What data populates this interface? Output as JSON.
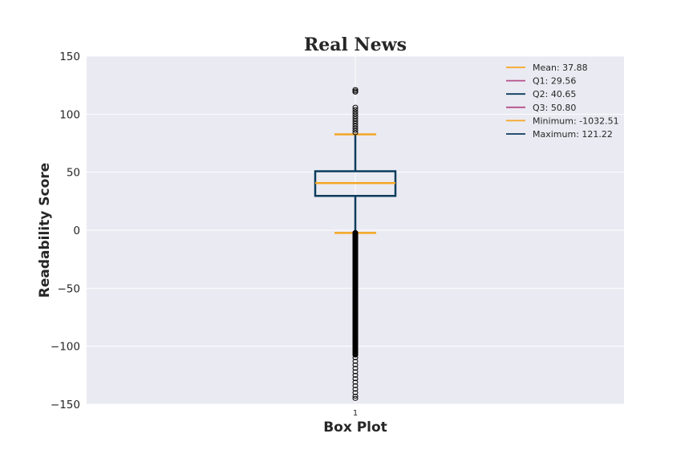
{
  "chart_data": {
    "type": "box",
    "title": "Real News",
    "xlabel": "Box Plot",
    "ylabel": "Readability Score",
    "categories": [
      "1"
    ],
    "ylim": [
      -150,
      150
    ],
    "yticks": [
      150,
      100,
      50,
      0,
      -50,
      -100,
      -150
    ],
    "yticks_labels": [
      "150",
      "100",
      "50",
      "0",
      "−50",
      "−100",
      "−150"
    ],
    "grid": true,
    "legend_position": "top-right",
    "box": {
      "q1": 29.56,
      "median": 40.65,
      "q3": 50.8,
      "whisker_low": -2.3,
      "whisker_high": 82.6,
      "outliers_high": [
        84,
        86,
        88,
        90,
        92,
        94,
        96,
        98,
        100,
        102,
        104,
        106,
        119,
        120,
        121.22
      ],
      "outliers_low_dense": [
        -2,
        -108
      ],
      "outliers_low_sparse": [
        -110,
        -113,
        -116,
        -119,
        -122,
        -125,
        -128,
        -131,
        -134,
        -137,
        -140,
        -143,
        -145
      ]
    },
    "legend": [
      {
        "label": "Mean: 37.88",
        "color": "#f5a623"
      },
      {
        "label": "Q1: 29.56",
        "color": "#b5508a"
      },
      {
        "label": "Q2: 40.65",
        "color": "#0b3c5d"
      },
      {
        "label": "Q3: 50.80",
        "color": "#b5508a"
      },
      {
        "label": "Minimum: -1032.51",
        "color": "#f5a623"
      },
      {
        "label": "Maximum: 121.22",
        "color": "#0b3c5d"
      }
    ],
    "colors": {
      "box": "#0b3c5d",
      "median": "#f5a623",
      "caps": "#f5a623",
      "background": "#eaeaf2",
      "grid": "#ffffff"
    }
  }
}
